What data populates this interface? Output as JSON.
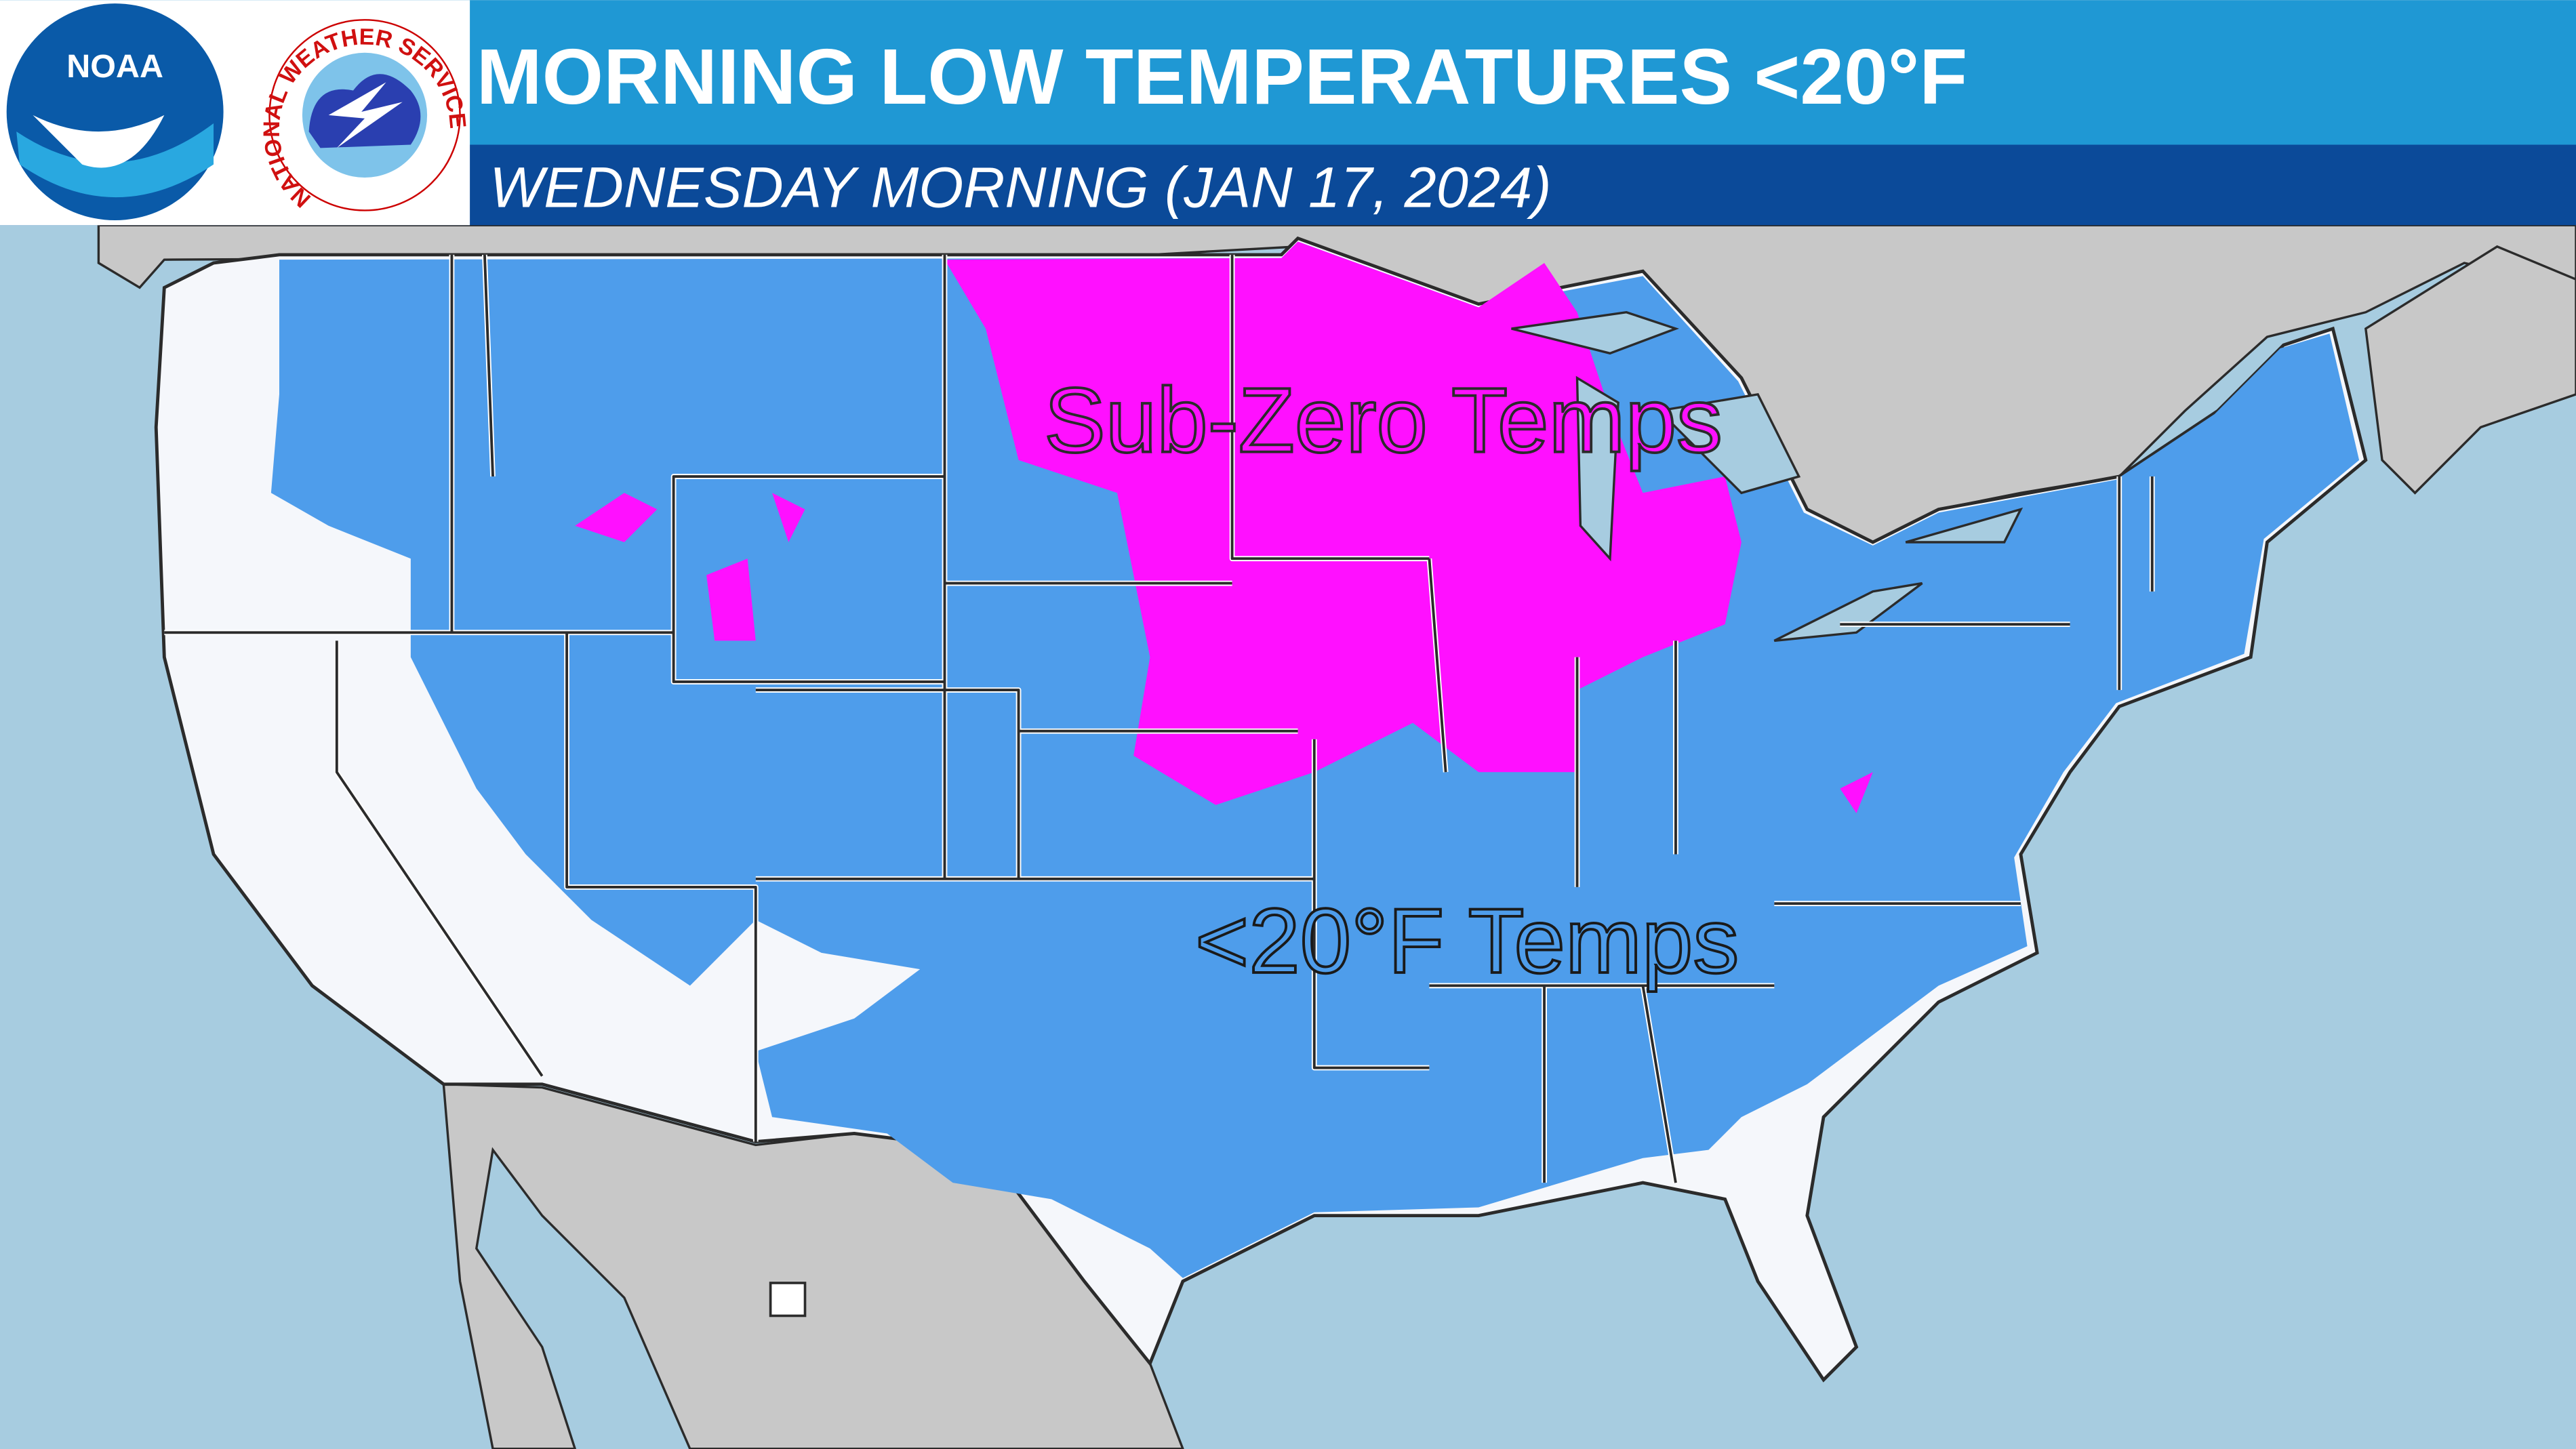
{
  "header": {
    "title": "MORNING LOW TEMPERATURES <20°F",
    "subtitle": "WEDNESDAY MORNING (JAN 17, 2024)"
  },
  "logos": {
    "noaa": "NOAA",
    "nws": "NATIONAL WEATHER SERVICE"
  },
  "map": {
    "labels": [
      "Sub-Zero Temps",
      "<20°F Temps"
    ]
  }
}
